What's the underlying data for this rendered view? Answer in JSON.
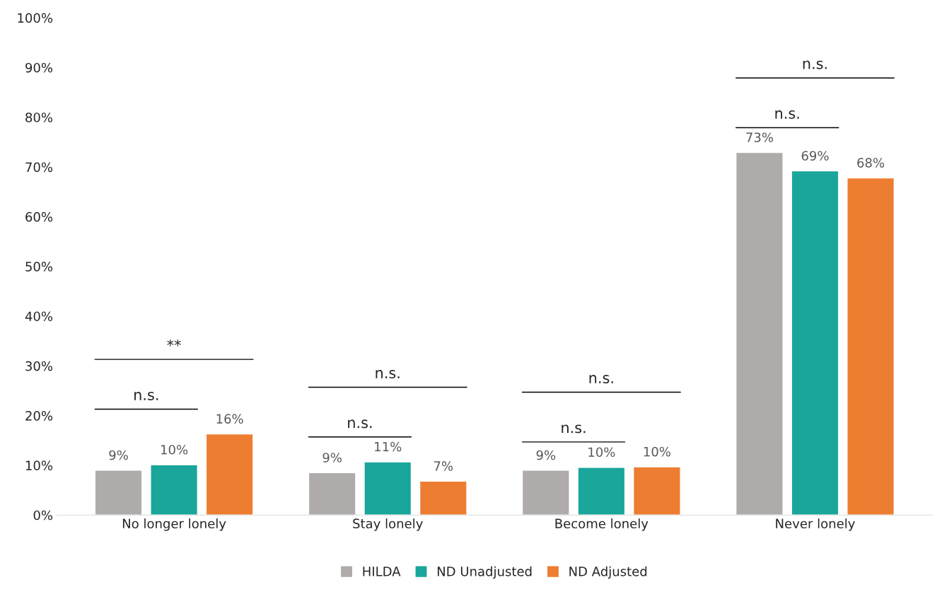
{
  "chart_data": {
    "type": "bar",
    "categories": [
      "No longer lonely",
      "Stay lonely",
      "Become lonely",
      "Never lonely"
    ],
    "series": [
      {
        "name": "HILDA",
        "color": "#afabab",
        "values": [
          9.0,
          8.5,
          9.0,
          72.9
        ],
        "value_labels": [
          "9%",
          "9%",
          "9%",
          "73%"
        ]
      },
      {
        "name": "ND Unadjusted",
        "color": "#1aa69a",
        "values": [
          10.1,
          10.7,
          9.6,
          69.2
        ],
        "value_labels": [
          "10%",
          "11%",
          "10%",
          "69%"
        ]
      },
      {
        "name": "ND Adjusted",
        "color": "#ed7d31",
        "values": [
          16.3,
          6.8,
          9.7,
          67.8
        ],
        "value_labels": [
          "16%",
          "7%",
          "10%",
          "68%"
        ]
      }
    ],
    "ylim": [
      0,
      100
    ],
    "yticks": [
      {
        "value": 0,
        "label": "0%"
      },
      {
        "value": 10,
        "label": "10%"
      },
      {
        "value": 20,
        "label": "20%"
      },
      {
        "value": 30,
        "label": "30%"
      },
      {
        "value": 40,
        "label": "40%"
      },
      {
        "value": 50,
        "label": "50%"
      },
      {
        "value": 60,
        "label": "60%"
      },
      {
        "value": 70,
        "label": "70%"
      },
      {
        "value": 80,
        "label": "80%"
      },
      {
        "value": 90,
        "label": "90%"
      },
      {
        "value": 100,
        "label": "100%"
      }
    ],
    "annotations": [
      "n.s.",
      "**",
      "n.s.",
      "n.s.",
      "n.s.",
      "n.s.",
      "n.s.",
      "n.s."
    ],
    "grid": false,
    "legend": "bottom"
  }
}
